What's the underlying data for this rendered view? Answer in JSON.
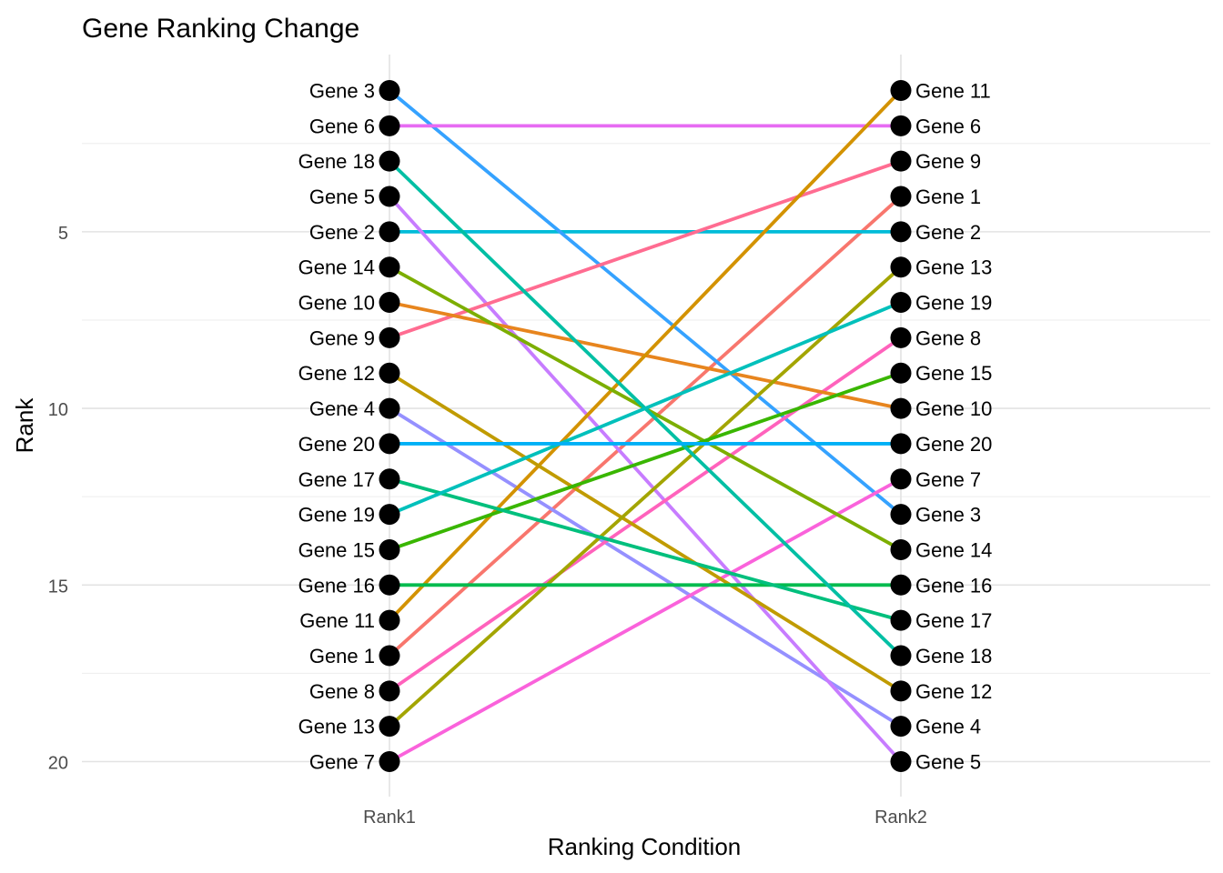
{
  "chart_data": {
    "type": "line",
    "title": "Gene Ranking Change",
    "xlabel": "Ranking Condition",
    "ylabel": "Rank",
    "categories": [
      "Rank1",
      "Rank2"
    ],
    "y_ticks": [
      5,
      10,
      15,
      20
    ],
    "ylim": [
      0.4,
      21.0
    ],
    "y_reversed": true,
    "grid": true,
    "legend": "none",
    "series": [
      {
        "name": "Gene 1",
        "values": [
          17,
          4
        ],
        "color": "#F8766D"
      },
      {
        "name": "Gene 2",
        "values": [
          5,
          5
        ],
        "color": "#00BCD8"
      },
      {
        "name": "Gene 3",
        "values": [
          1,
          13
        ],
        "color": "#35A2FF"
      },
      {
        "name": "Gene 4",
        "values": [
          10,
          19
        ],
        "color": "#9590FF"
      },
      {
        "name": "Gene 5",
        "values": [
          4,
          20
        ],
        "color": "#C77CFF"
      },
      {
        "name": "Gene 6",
        "values": [
          2,
          2
        ],
        "color": "#E76BF3"
      },
      {
        "name": "Gene 7",
        "values": [
          20,
          12
        ],
        "color": "#FA62DB"
      },
      {
        "name": "Gene 8",
        "values": [
          18,
          8
        ],
        "color": "#FF62BC"
      },
      {
        "name": "Gene 9",
        "values": [
          8,
          3
        ],
        "color": "#FF6C91"
      },
      {
        "name": "Gene 10",
        "values": [
          7,
          10
        ],
        "color": "#E7851E"
      },
      {
        "name": "Gene 11",
        "values": [
          16,
          1
        ],
        "color": "#D39200"
      },
      {
        "name": "Gene 12",
        "values": [
          9,
          18
        ],
        "color": "#C09B00"
      },
      {
        "name": "Gene 13",
        "values": [
          19,
          6
        ],
        "color": "#A3A500"
      },
      {
        "name": "Gene 14",
        "values": [
          6,
          14
        ],
        "color": "#7CAE00"
      },
      {
        "name": "Gene 15",
        "values": [
          14,
          9
        ],
        "color": "#39B600"
      },
      {
        "name": "Gene 16",
        "values": [
          15,
          15
        ],
        "color": "#00BB4E"
      },
      {
        "name": "Gene 17",
        "values": [
          12,
          16
        ],
        "color": "#00BF7D"
      },
      {
        "name": "Gene 18",
        "values": [
          3,
          17
        ],
        "color": "#00BFA4"
      },
      {
        "name": "Gene 19",
        "values": [
          13,
          7
        ],
        "color": "#00C0BB"
      },
      {
        "name": "Gene 20",
        "values": [
          11,
          11
        ],
        "color": "#00B0F6"
      }
    ]
  }
}
